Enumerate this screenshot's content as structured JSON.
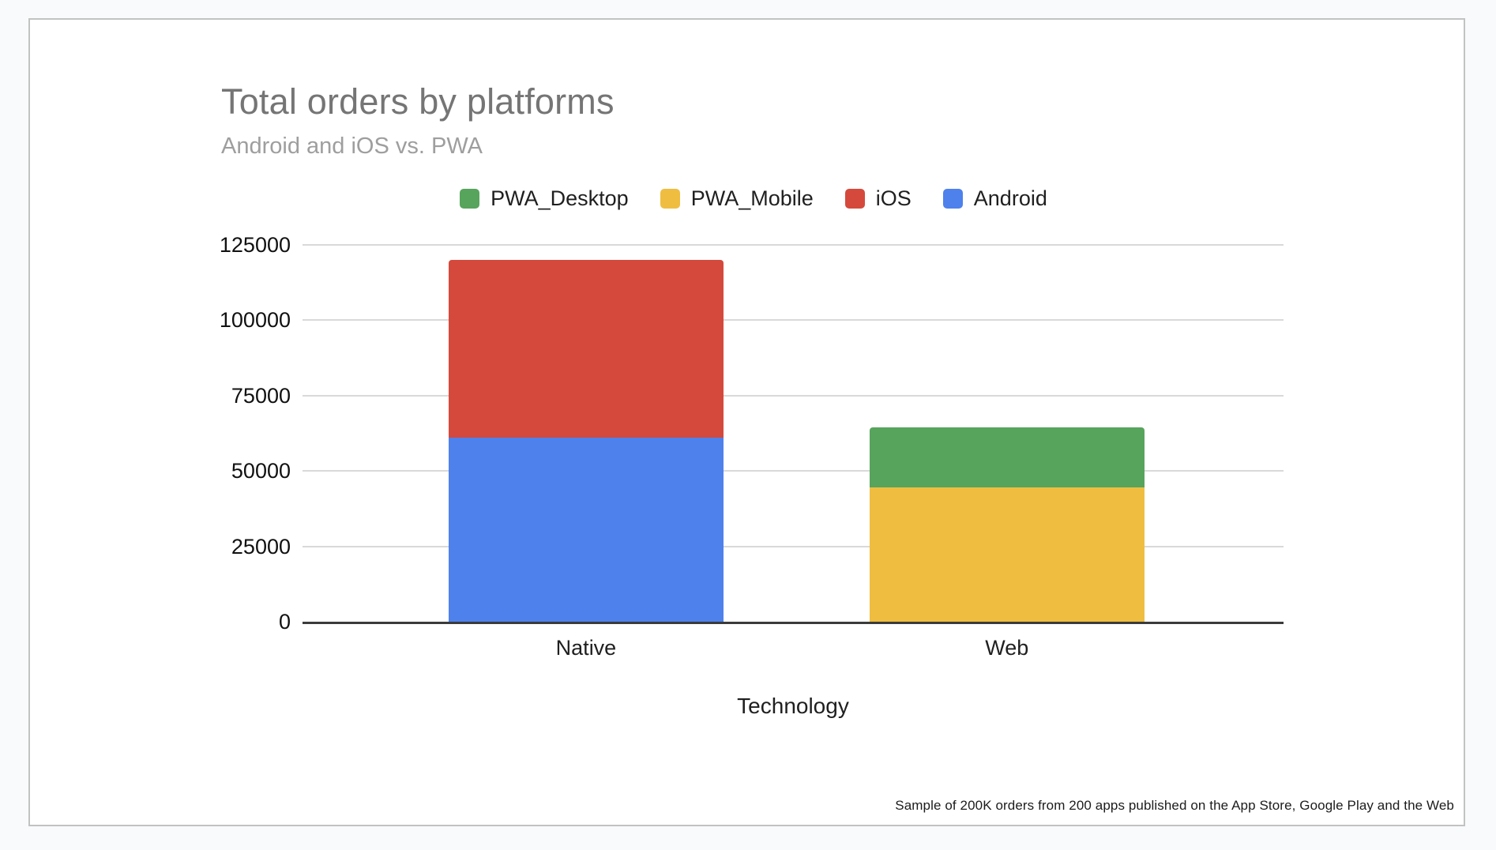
{
  "card": {
    "background": "#ffffff",
    "border_color": "#c2c2c2",
    "page_background": "#f8fafb"
  },
  "chart_data": {
    "type": "bar",
    "variant": "stacked-vertical",
    "title": "Total orders by platforms",
    "subtitle": "Android and iOS vs. PWA",
    "xlabel": "Technology",
    "ylabel": "",
    "categories": [
      "Native",
      "Web"
    ],
    "series": [
      {
        "name": "Android",
        "color": "#4e81ec",
        "values": [
          61000,
          0
        ]
      },
      {
        "name": "iOS",
        "color": "#d5493c",
        "values": [
          59000,
          0
        ]
      },
      {
        "name": "PWA_Mobile",
        "color": "#efbe41",
        "values": [
          0,
          44500
        ]
      },
      {
        "name": "PWA_Desktop",
        "color": "#57a45c",
        "values": [
          0,
          20000
        ]
      }
    ],
    "stack_totals": {
      "Native": 120000,
      "Web": 64500
    },
    "legend_order": [
      "PWA_Desktop",
      "PWA_Mobile",
      "iOS",
      "Android"
    ],
    "legend_position": "top",
    "y_ticks": [
      0,
      25000,
      50000,
      75000,
      100000,
      125000
    ],
    "ylim": [
      0,
      125000
    ],
    "grid": true,
    "gridline_color": "#d9d9d9",
    "axis_line_color": "#3b3b3b",
    "title_color": "#757575",
    "subtitle_color": "#9e9e9e"
  },
  "footer": {
    "note": "Sample of 200K orders from 200 apps published on the App Store, Google Play and the Web"
  }
}
